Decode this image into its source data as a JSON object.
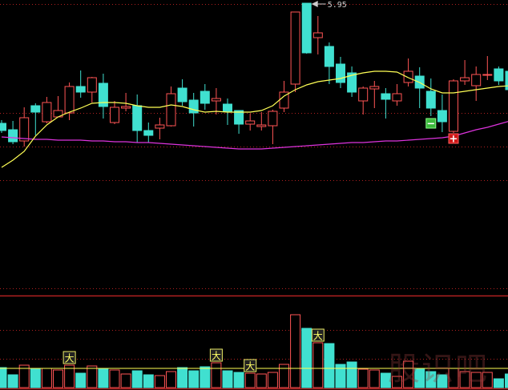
{
  "chart_data": {
    "type": "candlestick",
    "max_label": "5.95",
    "colors": {
      "up": "#ff5555",
      "down": "#40e0d0",
      "ma_short": "#ffff55",
      "ma_long": "#dd33dd",
      "grid": "#b02020",
      "background": "#000000"
    },
    "candles": [
      [
        4.45,
        4.49,
        4.33,
        4.36
      ],
      [
        4.37,
        4.48,
        4.19,
        4.22
      ],
      [
        4.23,
        4.65,
        4.16,
        4.52
      ],
      [
        4.67,
        4.7,
        4.3,
        4.59
      ],
      [
        4.47,
        4.78,
        4.45,
        4.71
      ],
      [
        4.53,
        4.79,
        4.53,
        4.61
      ],
      [
        4.58,
        4.96,
        4.49,
        4.91
      ],
      [
        4.91,
        5.11,
        4.77,
        4.84
      ],
      [
        4.84,
        5.03,
        4.71,
        5.02
      ],
      [
        4.95,
        5.07,
        4.51,
        4.66
      ],
      [
        4.46,
        4.73,
        4.44,
        4.65
      ],
      [
        4.64,
        4.83,
        4.6,
        4.66
      ],
      [
        4.67,
        4.81,
        4.21,
        4.36
      ],
      [
        4.36,
        4.46,
        4.21,
        4.3
      ],
      [
        4.39,
        4.52,
        4.25,
        4.43
      ],
      [
        4.42,
        4.91,
        4.41,
        4.82
      ],
      [
        4.89,
        5.0,
        4.67,
        4.72
      ],
      [
        4.74,
        4.83,
        4.41,
        4.58
      ],
      [
        4.85,
        4.94,
        4.62,
        4.7
      ],
      [
        4.73,
        4.89,
        4.56,
        4.76
      ],
      [
        4.69,
        4.76,
        4.43,
        4.6
      ],
      [
        4.61,
        4.61,
        4.32,
        4.44
      ],
      [
        4.44,
        4.57,
        4.36,
        4.48
      ],
      [
        4.41,
        4.59,
        4.36,
        4.43
      ],
      [
        4.42,
        4.62,
        4.19,
        4.6
      ],
      [
        4.64,
        4.98,
        4.59,
        4.84
      ],
      [
        4.94,
        5.84,
        4.84,
        5.84
      ],
      [
        5.95,
        5.95,
        5.32,
        5.33
      ],
      [
        5.52,
        5.79,
        5.31,
        5.58
      ],
      [
        5.41,
        5.46,
        4.94,
        5.16
      ],
      [
        5.19,
        5.28,
        4.89,
        4.96
      ],
      [
        5.08,
        5.16,
        4.78,
        4.84
      ],
      [
        4.73,
        4.91,
        4.56,
        4.89
      ],
      [
        4.88,
        4.98,
        4.64,
        4.91
      ],
      [
        4.82,
        4.89,
        4.51,
        4.75
      ],
      [
        4.73,
        4.94,
        4.67,
        4.82
      ],
      [
        4.96,
        5.26,
        4.91,
        5.1
      ],
      [
        5.04,
        5.15,
        4.64,
        4.89
      ],
      [
        4.85,
        5.01,
        4.54,
        4.64
      ],
      [
        4.61,
        4.81,
        4.34,
        4.47
      ],
      [
        4.35,
        5.0,
        4.33,
        4.98
      ],
      [
        4.98,
        5.24,
        4.93,
        5.02
      ],
      [
        4.92,
        5.16,
        4.73,
        5.06
      ],
      [
        5.05,
        5.29,
        4.99,
        5.06
      ],
      [
        5.13,
        5.16,
        4.93,
        4.98
      ],
      [
        5.1,
        5.12,
        4.87,
        4.87
      ]
    ],
    "ma_short": [
      3.9,
      3.99,
      4.1,
      4.29,
      4.43,
      4.53,
      4.59,
      4.64,
      4.7,
      4.71,
      4.71,
      4.7,
      4.67,
      4.65,
      4.65,
      4.68,
      4.66,
      4.62,
      4.59,
      4.6,
      4.59,
      4.59,
      4.59,
      4.61,
      4.67,
      4.79,
      4.87,
      4.93,
      4.97,
      4.99,
      5.01,
      5.05,
      5.08,
      5.1,
      5.1,
      5.09,
      5.02,
      4.96,
      4.88,
      4.83,
      4.83,
      4.85,
      4.87,
      4.89,
      4.91,
      4.92
    ],
    "ma_long": [
      4.28,
      4.27,
      4.26,
      4.25,
      4.25,
      4.24,
      4.24,
      4.24,
      4.23,
      4.23,
      4.22,
      4.22,
      4.21,
      4.21,
      4.2,
      4.19,
      4.18,
      4.17,
      4.16,
      4.15,
      4.14,
      4.13,
      4.13,
      4.13,
      4.14,
      4.15,
      4.16,
      4.17,
      4.18,
      4.19,
      4.2,
      4.21,
      4.21,
      4.22,
      4.23,
      4.23,
      4.24,
      4.25,
      4.26,
      4.27,
      4.29,
      4.33,
      4.37,
      4.4,
      4.44,
      4.48
    ],
    "volume": [
      25,
      16,
      28,
      24,
      24,
      22,
      28,
      18,
      27,
      24,
      22,
      17,
      21,
      16,
      15,
      20,
      25,
      21,
      26,
      31,
      21,
      19,
      18,
      17,
      19,
      29,
      91,
      74,
      56,
      55,
      29,
      32,
      23,
      22,
      18,
      14,
      33,
      24,
      20,
      16,
      24,
      20,
      19,
      19,
      11,
      17
    ],
    "volume_ma": 24,
    "signals": [
      {
        "index": 38,
        "type": "sell",
        "symbol": "−"
      },
      {
        "index": 40,
        "type": "buy",
        "symbol": "+"
      }
    ],
    "volume_markers": {
      "label": "大",
      "indices": [
        6,
        19,
        22,
        28
      ]
    }
  },
  "watermark": "股识吧"
}
